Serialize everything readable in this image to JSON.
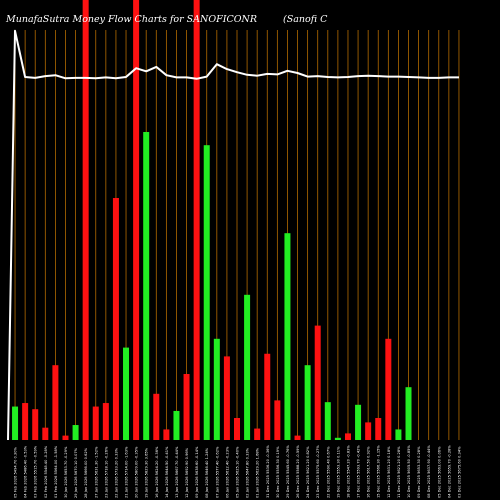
{
  "chart_data": {
    "type": "bar",
    "title": "MunafaSutra  Money Flow  Charts for SANOFICONR",
    "subtitle": "(Sanofi   C",
    "xlabel": "",
    "ylabel": "",
    "bar_ylim": [
      0,
      100
    ],
    "line_ylim": [
      0,
      100
    ],
    "colors": {
      "background": "#000000",
      "up": "#22ee22",
      "down": "#ff1111",
      "line": "#ffffff",
      "grid": "#b36b00"
    },
    "categories": [
      "05 Feb 2026 5494.70 0.30%",
      "04 Feb 2026 5486.40 -0.53%",
      "03 Feb 2026 5515.70 -0.59%",
      "02 Feb 2026 5548.40 -0.28%",
      "01 Feb 2026 5564.00 -1.58%",
      "30 Jan 2026 5653.70 -0.29%",
      "29 Jan 2026 5670.10 0.07%",
      "28 Jan 2026 5666.00 0.62%",
      "27 Jan 2026 5631.30 -1.52%",
      "23 Jan 2026 5718.10 -0.26%",
      "22 Jan 2026 5733.20 0.33%",
      "21 Jan 2026 5714.00 -1.63%",
      "20 Jan 2026 5809.00 -0.35%",
      "19 Jan 2026 5829.30 3.65%",
      "16 Jan 2026 5624.20 -0.36%",
      "14 Jan 2026 5644.50 -0.41%",
      "13 Jan 2026 5667.70 -0.44%",
      "12 Jan 2026 5692.90 0.96%",
      "09 Jan 2026 5638.60 -0.14%",
      "08 Jan 2026 5646.40 1.24%",
      "07 Jan 2026 5577.40 -0.62%",
      "06 Jan 2026 5612.40 -0.23%",
      "05 Jan 2026 5625.10 -0.40%",
      "02 Jan 2026 5647.80 0.33%",
      "01 Jan 2026 5629.20 1.68%",
      "31 Dec 2025 5536.20 -0.36%",
      "30 Dec 2025 5556.30 0.19%",
      "29 Dec 2025 5545.60 -0.76%",
      "26 Dec 2025 5588.20 -0.59%",
      "24 Dec 2025 5621.20 0.82%",
      "23 Dec 2025 5575.60 -0.27%",
      "22 Dec 2025 5590.40 0.67%",
      "19 Dec 2025 5553.30 0.11%",
      "18 Dec 2025 5547.20 -0.83%",
      "17 Dec 2025 5593.70 -0.42%",
      "16 Dec 2025 5617.50 0.92%",
      "15 Dec 2025 5566.30 -1.15%",
      "12 Dec 2025 5631.20 0.18%",
      "11 Dec 2025 5621.20 0.28%",
      "10 Dec 2025 5605.50 -0.85%",
      "09 Dec 2025 5653.30 0.28%",
      "08 Dec 2025 5637.90 -0.44%",
      "05 Dec 2025 5663.00 0.06%",
      "04 Dec 2025 5659.70 -0.28%",
      "03 Dec 2025 5675.60 0.34%"
    ],
    "series": [
      {
        "type": "bar",
        "directions": [
          "up",
          "down",
          "down",
          "down",
          "down",
          "down",
          "up",
          "down",
          "down",
          "down",
          "down",
          "up",
          "down",
          "up",
          "down",
          "down",
          "up",
          "down",
          "down",
          "up",
          "up",
          "down",
          "down",
          "up",
          "down",
          "down",
          "down",
          "up",
          "down",
          "up",
          "down",
          "up",
          "up",
          "down",
          "up",
          "down",
          "down",
          "down",
          "up",
          "up",
          "down",
          "down",
          "up",
          "down",
          "up"
        ],
        "values": [
          7.6,
          8.4,
          7.0,
          2.8,
          17.0,
          1.0,
          3.4,
          100,
          7.6,
          8.4,
          55.0,
          21.0,
          100,
          70.0,
          10.5,
          2.4,
          6.6,
          15.0,
          100,
          67.0,
          23.0,
          19.0,
          5.0,
          33.0,
          2.6,
          19.6,
          9.0,
          47.0,
          1.0,
          17.0,
          26.0,
          8.6,
          0.5,
          1.5,
          8.0,
          4.0,
          5.0,
          23.0,
          2.4,
          12.0,
          0,
          0,
          0,
          0,
          0
        ]
      },
      {
        "type": "line",
        "values": [
          93,
          82.5,
          82.3,
          82.7,
          82.9,
          82.2,
          82.3,
          82.3,
          82.2,
          82.4,
          82.2,
          82.5,
          84.5,
          83.8,
          84.8,
          82.9,
          82.4,
          82.4,
          82.1,
          82.6,
          85.4,
          84.3,
          83.6,
          83.0,
          82.8,
          83.2,
          83.1,
          83.9,
          83.4,
          82.6,
          82.7,
          82.5,
          82.4,
          82.5,
          82.7,
          82.8,
          82.7,
          82.6,
          82.6,
          82.5,
          82.4,
          82.3,
          82.3,
          82.4,
          82.4
        ]
      }
    ]
  }
}
